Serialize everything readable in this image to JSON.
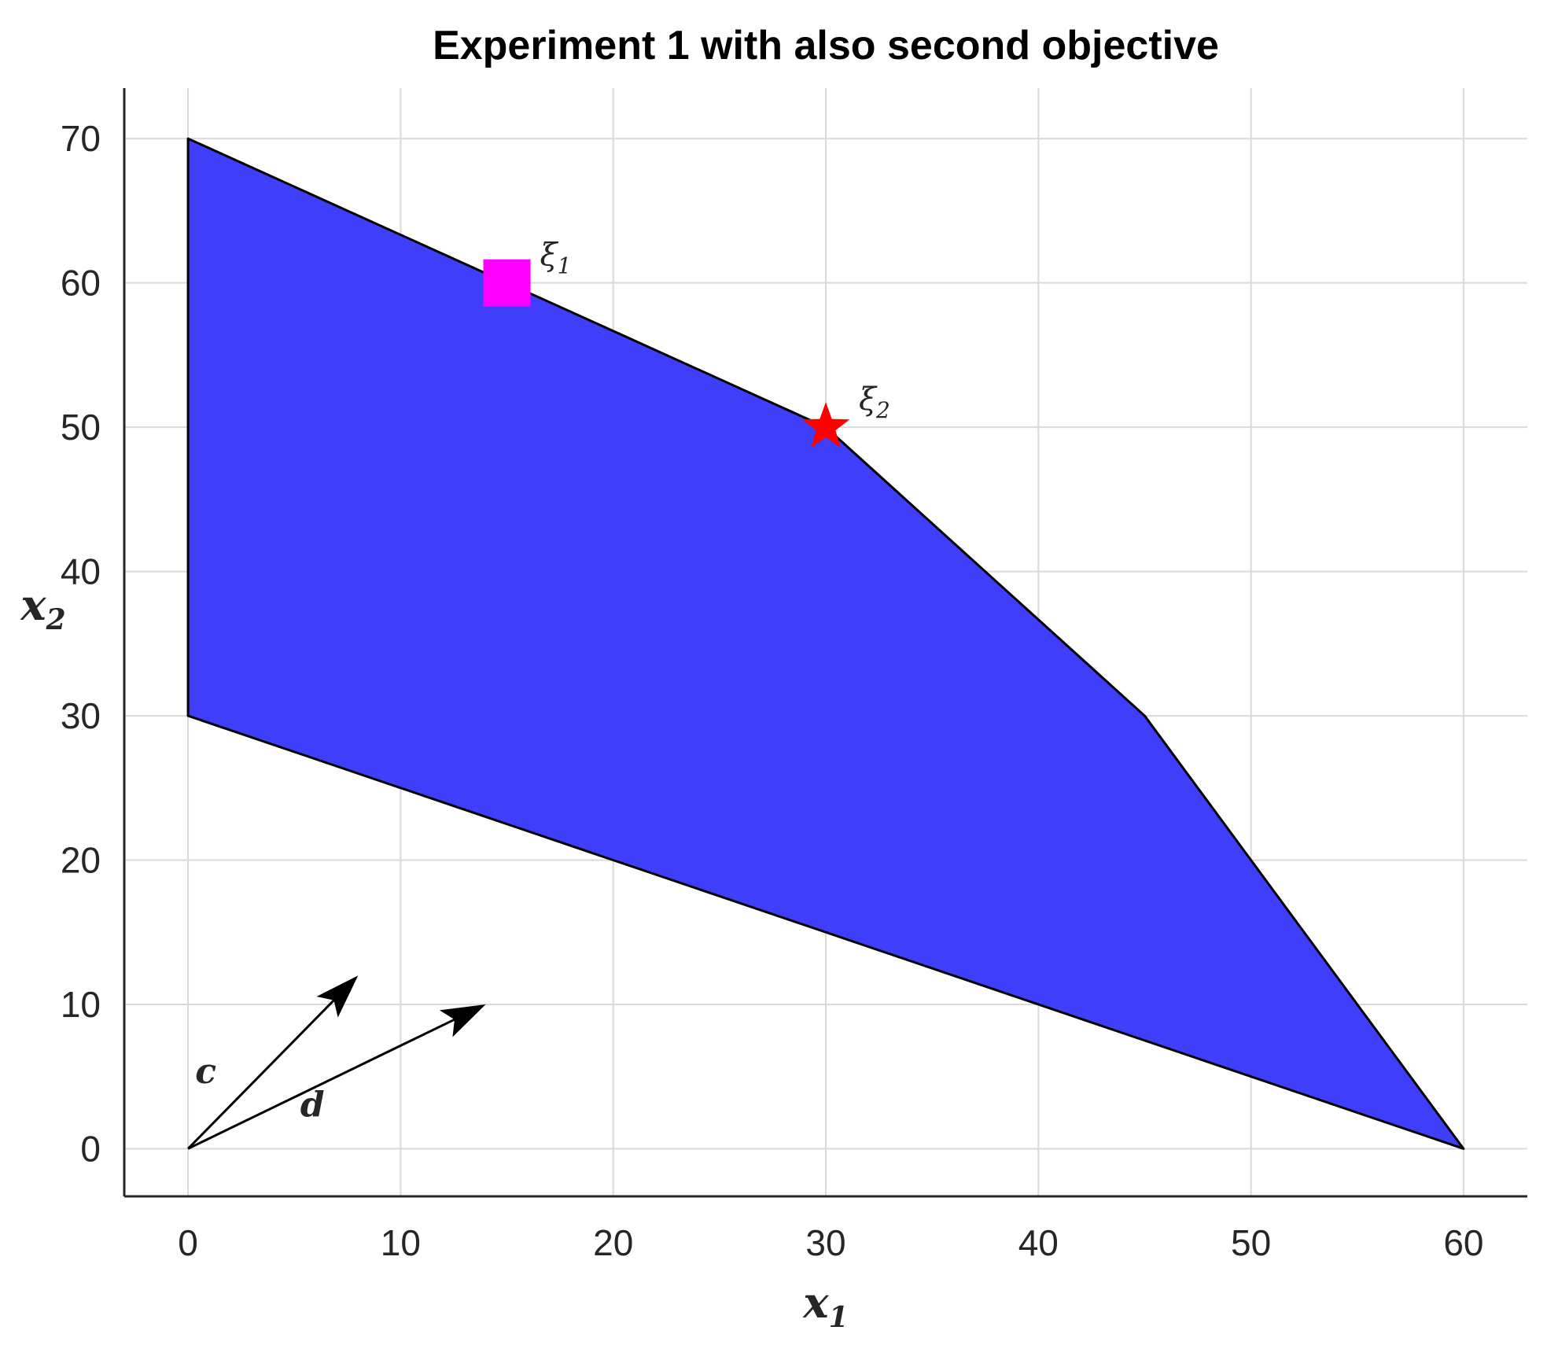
{
  "chart_data": {
    "type": "area",
    "title": "Experiment 1 with also second objective",
    "xlabel": "x",
    "xlabel_sub": "1",
    "ylabel": "x",
    "ylabel_sub": "2",
    "xlim": [
      -3,
      63
    ],
    "ylim": [
      -3.3,
      73.5
    ],
    "xticks": [
      0,
      10,
      20,
      30,
      40,
      50,
      60
    ],
    "yticks": [
      0,
      10,
      20,
      30,
      40,
      50,
      60,
      70
    ],
    "grid": true,
    "region": {
      "fill": "#3f3ffb",
      "edge": "#000000",
      "vertices": [
        [
          0,
          70
        ],
        [
          30,
          50
        ],
        [
          45,
          30
        ],
        [
          60,
          0
        ],
        [
          0,
          30
        ]
      ]
    },
    "points": [
      {
        "label": "ξ",
        "label_sub": "1",
        "x": 15,
        "y": 60,
        "marker": "square",
        "color": "#ff00ff"
      },
      {
        "label": "ξ",
        "label_sub": "2",
        "x": 30,
        "y": 50,
        "marker": "star",
        "color": "#ff0000"
      }
    ],
    "vectors": [
      {
        "label": "c",
        "from": [
          0,
          0
        ],
        "to": [
          8,
          12
        ]
      },
      {
        "label": "d",
        "from": [
          0,
          0
        ],
        "to": [
          14,
          10
        ]
      }
    ]
  }
}
